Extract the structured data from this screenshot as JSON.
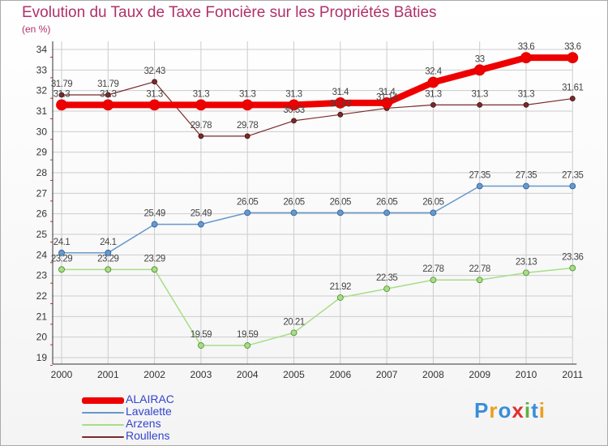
{
  "header": {
    "title": "Evolution du Taux de Taxe Foncière sur les Propriétés Bâties",
    "subtitle": "(en %)"
  },
  "logo": {
    "text": "Proxiti",
    "colors": [
      "#3a8ed8",
      "#e8a020",
      "#3a8ed8",
      "#e03030",
      "#60b040",
      "#3a8ed8",
      "#e8a020"
    ]
  },
  "chart_data": {
    "type": "line",
    "title": "Evolution du Taux de Taxe Foncière sur les Propriétés Bâties",
    "ylabel": "(en %)",
    "xlabel": "",
    "categories": [
      "2000",
      "2001",
      "2002",
      "2003",
      "2004",
      "2005",
      "2006",
      "2007",
      "2008",
      "2009",
      "2010",
      "2011"
    ],
    "ylim": [
      19,
      34
    ],
    "yticks": [
      "19",
      "20",
      "21",
      "22",
      "23",
      "24",
      "25",
      "26",
      "27",
      "28",
      "29",
      "30",
      "31",
      "32",
      "33",
      "34"
    ],
    "legend_position": "bottom-left",
    "series": [
      {
        "name": "Roullens",
        "color": "#7a2a2a",
        "values": [
          31.79,
          31.79,
          32.43,
          29.78,
          29.78,
          30.53,
          30.83,
          31.14,
          31.3,
          31.3,
          31.3,
          31.61
        ],
        "labels": [
          "31.79",
          "31.79",
          "32.43",
          "29.78",
          "29.78",
          "30.53",
          "30.83",
          "31.14",
          "31.3",
          "31.3",
          "31.3",
          "31.61"
        ]
      },
      {
        "name": "ALAIRAC",
        "color": "#ee0000",
        "values": [
          31.3,
          31.3,
          31.3,
          31.3,
          31.3,
          31.3,
          31.4,
          31.4,
          32.4,
          33,
          33.6,
          33.6
        ],
        "labels": [
          "31.3",
          "31.3",
          "31.3",
          "31.3",
          "31.3",
          "31.3",
          "31.4",
          "31.4",
          "32.4",
          "33",
          "33.6",
          "33.6"
        ]
      },
      {
        "name": "Lavalette",
        "color": "#6699cc",
        "values": [
          24.1,
          24.1,
          25.49,
          25.49,
          26.05,
          26.05,
          26.05,
          26.05,
          26.05,
          27.35,
          27.35,
          27.35
        ],
        "labels": [
          "24.1",
          "24.1",
          "25.49",
          "25.49",
          "26.05",
          "26.05",
          "26.05",
          "26.05",
          "26.05",
          "27.35",
          "27.35",
          "27.35"
        ]
      },
      {
        "name": "Arzens",
        "color": "#a8dd88",
        "values": [
          23.29,
          23.29,
          23.29,
          19.59,
          19.59,
          20.21,
          21.92,
          22.35,
          22.78,
          22.78,
          23.13,
          23.36
        ],
        "labels": [
          "23.29",
          "23.29",
          "23.29",
          "19.59",
          "19.59",
          "20.21",
          "21.92",
          "22.35",
          "22.78",
          "22.78",
          "23.13",
          "23.36"
        ]
      }
    ],
    "legend_order": [
      "ALAIRAC",
      "Lavalette",
      "Arzens",
      "Roullens"
    ]
  }
}
